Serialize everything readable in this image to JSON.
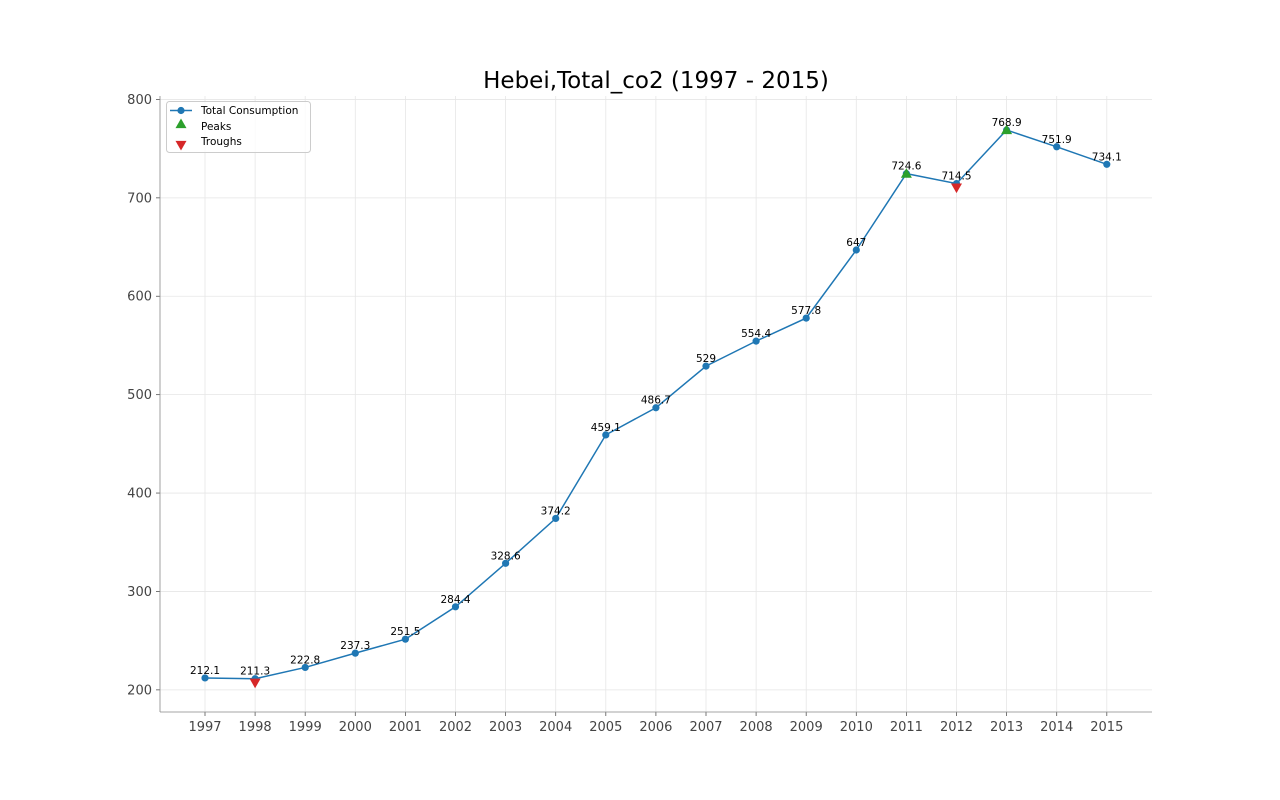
{
  "chart_data": {
    "type": "line",
    "title": "Hebei,Total_co2 (1997 - 2015)",
    "xlabel": "",
    "ylabel": "",
    "categories": [
      "1997",
      "1998",
      "1999",
      "2000",
      "2001",
      "2002",
      "2003",
      "2004",
      "2005",
      "2006",
      "2007",
      "2008",
      "2009",
      "2010",
      "2011",
      "2012",
      "2013",
      "2014",
      "2015"
    ],
    "series": [
      {
        "name": "Total Consumption",
        "values": [
          212.1,
          211.3,
          222.8,
          237.3,
          251.5,
          284.4,
          328.6,
          374.2,
          459.1,
          486.7,
          529,
          554.4,
          577.8,
          647,
          724.6,
          714.5,
          768.9,
          751.9,
          734.1
        ],
        "color": "#1f77b4",
        "marker": "circle"
      }
    ],
    "data_labels": [
      "212.1",
      "211.3",
      "222.8",
      "237.3",
      "251.5",
      "284.4",
      "328.6",
      "374.2",
      "459.1",
      "486.7",
      "529",
      "554.4",
      "577.8",
      "647",
      "724.6",
      "714.5",
      "768.9",
      "751.9",
      "734.1"
    ],
    "peaks": {
      "name": "Peaks",
      "categories": [
        "2011",
        "2013"
      ],
      "values": [
        724.6,
        768.9
      ],
      "color": "#2ca02c",
      "marker": "triangle-up"
    },
    "troughs": {
      "name": "Troughs",
      "categories": [
        "1998",
        "2012"
      ],
      "values": [
        211.3,
        714.5
      ],
      "color": "#d62728",
      "marker": "triangle-down"
    },
    "ylim": [
      177.5,
      803.5
    ],
    "yticks": [
      200,
      300,
      400,
      500,
      600,
      700,
      800
    ],
    "grid": true,
    "legend_position": "top-left",
    "legend": [
      "Total Consumption",
      "Peaks",
      "Troughs"
    ]
  }
}
